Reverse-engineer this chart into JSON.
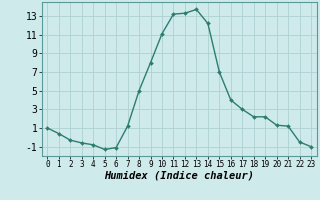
{
  "x": [
    0,
    1,
    2,
    3,
    4,
    5,
    6,
    7,
    8,
    9,
    10,
    11,
    12,
    13,
    14,
    15,
    16,
    17,
    18,
    19,
    20,
    21,
    22,
    23
  ],
  "y": [
    1,
    0.4,
    -0.3,
    -0.6,
    -0.8,
    -1.3,
    -1.1,
    1.2,
    5.0,
    8.0,
    11.1,
    13.2,
    13.3,
    13.7,
    12.2,
    7.0,
    4.0,
    3.0,
    2.2,
    2.2,
    1.3,
    1.2,
    -0.5,
    -1.0
  ],
  "line_color": "#2d7d6e",
  "marker": "D",
  "marker_size": 2,
  "bg_color": "#ceeaeb",
  "grid_color": "#aed0d1",
  "xlabel": "Humidex (Indice chaleur)",
  "xlabel_fontsize": 7.5,
  "tick_fontsize": 7,
  "ylim": [
    -2,
    14.5
  ],
  "xlim": [
    -0.5,
    23.5
  ],
  "yticks": [
    -1,
    1,
    3,
    5,
    7,
    9,
    11,
    13
  ],
  "xticks": [
    0,
    1,
    2,
    3,
    4,
    5,
    6,
    7,
    8,
    9,
    10,
    11,
    12,
    13,
    14,
    15,
    16,
    17,
    18,
    19,
    20,
    21,
    22,
    23
  ],
  "line_width": 1.0
}
